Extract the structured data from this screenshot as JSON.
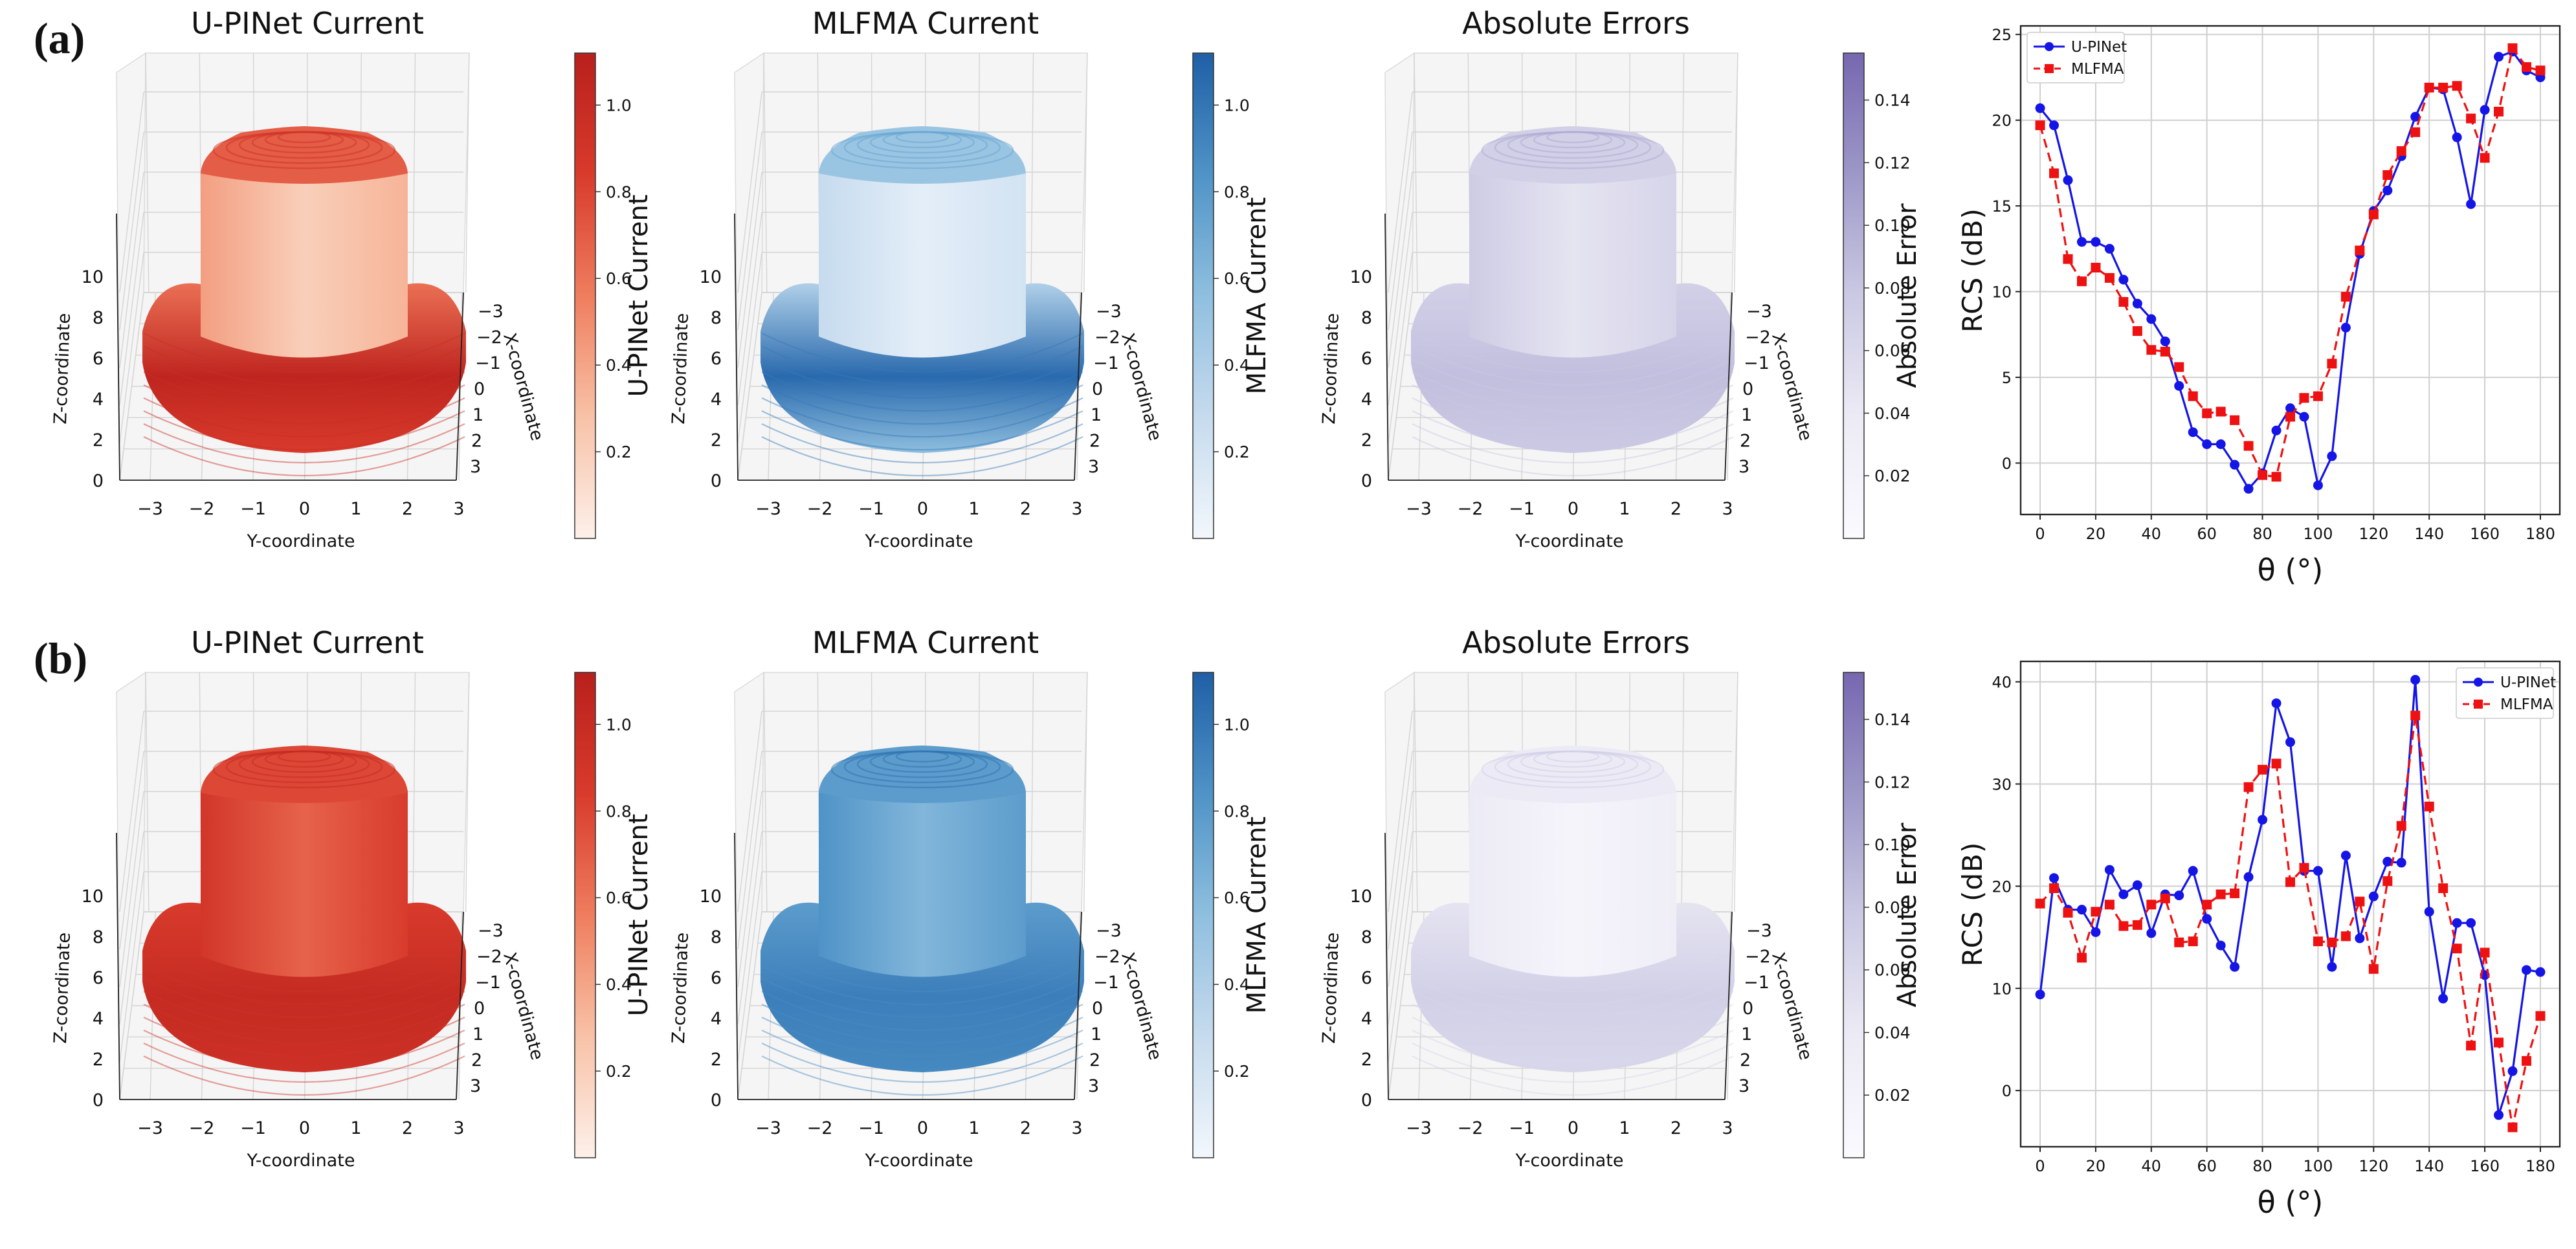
{
  "figure": {
    "rows": [
      {
        "label": "(a)",
        "panels": [
          {
            "title": "U-PINet Current",
            "colorbar_label": "U-PINet Current",
            "colorbar_ticks": [
              "0.2",
              "0.4",
              "0.6",
              "0.8",
              "1.0"
            ],
            "colormap": "Reds",
            "z_label": "Z-coordinate",
            "x_label": "X-coordinate",
            "y_label": "Y-coordinate",
            "z_ticks": [
              "0",
              "2",
              "4",
              "6",
              "8",
              "10"
            ],
            "x_ticks": [
              "−3",
              "−2",
              "−1",
              "0",
              "1",
              "2",
              "3"
            ],
            "y_ticks": [
              "−3",
              "−2",
              "−1",
              "0",
              "1",
              "2",
              "3"
            ]
          },
          {
            "title": "MLFMA Current",
            "colorbar_label": "MLFMA Current",
            "colorbar_ticks": [
              "0.2",
              "0.4",
              "0.6",
              "0.8",
              "1.0"
            ],
            "colormap": "Blues",
            "z_label": "Z-coordinate",
            "x_label": "X-coordinate",
            "y_label": "Y-coordinate",
            "z_ticks": [
              "0",
              "2",
              "4",
              "6",
              "8",
              "10"
            ],
            "x_ticks": [
              "−3",
              "−2",
              "−1",
              "0",
              "1",
              "2",
              "3"
            ],
            "y_ticks": [
              "−3",
              "−2",
              "−1",
              "0",
              "1",
              "2",
              "3"
            ]
          },
          {
            "title": "Absolute Errors",
            "colorbar_label": "Absolute Error",
            "colorbar_ticks": [
              "0.02",
              "0.04",
              "0.06",
              "0.08",
              "0.10",
              "0.12",
              "0.14"
            ],
            "colormap": "Purples",
            "z_label": "Z-coordinate",
            "x_label": "X-coordinate",
            "y_label": "Y-coordinate",
            "z_ticks": [
              "0",
              "2",
              "4",
              "6",
              "8",
              "10"
            ],
            "x_ticks": [
              "−3",
              "−2",
              "−1",
              "0",
              "1",
              "2",
              "3"
            ],
            "y_ticks": [
              "−3",
              "−2",
              "−1",
              "0",
              "1",
              "2",
              "3"
            ]
          }
        ]
      },
      {
        "label": "(b)",
        "panels": [
          {
            "title": "U-PINet Current",
            "colorbar_label": "U-PINet Current",
            "colorbar_ticks": [
              "0.2",
              "0.4",
              "0.6",
              "0.8",
              "1.0"
            ],
            "colormap": "Reds",
            "z_label": "Z-coordinate",
            "x_label": "X-coordinate",
            "y_label": "Y-coordinate",
            "z_ticks": [
              "0",
              "2",
              "4",
              "6",
              "8",
              "10"
            ],
            "x_ticks": [
              "−3",
              "−2",
              "−1",
              "0",
              "1",
              "2",
              "3"
            ],
            "y_ticks": [
              "−3",
              "−2",
              "−1",
              "0",
              "1",
              "2",
              "3"
            ]
          },
          {
            "title": "MLFMA Current",
            "colorbar_label": "MLFMA Current",
            "colorbar_ticks": [
              "0.2",
              "0.4",
              "0.6",
              "0.8",
              "1.0"
            ],
            "colormap": "Blues",
            "z_label": "Z-coordinate",
            "x_label": "X-coordinate",
            "y_label": "Y-coordinate",
            "z_ticks": [
              "0",
              "2",
              "4",
              "6",
              "8",
              "10"
            ],
            "x_ticks": [
              "−3",
              "−2",
              "−1",
              "0",
              "1",
              "2",
              "3"
            ],
            "y_ticks": [
              "−3",
              "−2",
              "−1",
              "0",
              "1",
              "2",
              "3"
            ]
          },
          {
            "title": "Absolute Errors",
            "colorbar_label": "Absolute Error",
            "colorbar_ticks": [
              "0.02",
              "0.04",
              "0.06",
              "0.08",
              "0.10",
              "0.12",
              "0.14"
            ],
            "colormap": "Purples",
            "z_label": "Z-coordinate",
            "x_label": "X-coordinate",
            "y_label": "Y-coordinate",
            "z_ticks": [
              "0",
              "2",
              "4",
              "6",
              "8",
              "10"
            ],
            "x_ticks": [
              "−3",
              "−2",
              "−1",
              "0",
              "1",
              "2",
              "3"
            ],
            "y_ticks": [
              "−3",
              "−2",
              "−1",
              "0",
              "1",
              "2",
              "3"
            ]
          }
        ]
      }
    ],
    "colors": {
      "Reds": [
        "#fdf0ea",
        "#f8c2a7",
        "#ef7d5e",
        "#d83b2c",
        "#b9201c"
      ],
      "Blues": [
        "#f2f7fc",
        "#c6dbee",
        "#8fbfdf",
        "#4f93c7",
        "#1f5fa6"
      ],
      "Purples": [
        "#fbfaff",
        "#ecebf5",
        "#cbc9e3",
        "#9d98c8",
        "#7767b0"
      ],
      "upinet_line": "#1515e6",
      "mlfma_line": "#ee1111"
    }
  },
  "chart_data": [
    {
      "type": "line",
      "panel": "(a)",
      "title": "",
      "xlabel": "θ (°)",
      "ylabel": "RCS (dB)",
      "xlim": [
        -7,
        187
      ],
      "ylim": [
        -3,
        25.5
      ],
      "xticks": [
        0,
        20,
        40,
        60,
        80,
        100,
        120,
        140,
        160,
        180
      ],
      "yticks": [
        0,
        5,
        10,
        15,
        20,
        25
      ],
      "grid": true,
      "legend_position": "top-left",
      "series": [
        {
          "name": "U-PINet",
          "style": "solid",
          "marker": "circle",
          "x": [
            0,
            5,
            10,
            15,
            20,
            25,
            30,
            35,
            40,
            45,
            50,
            55,
            60,
            65,
            70,
            75,
            80,
            85,
            90,
            95,
            100,
            105,
            110,
            115,
            120,
            125,
            130,
            135,
            140,
            145,
            150,
            155,
            160,
            165,
            170,
            175,
            180
          ],
          "y": [
            20.7,
            19.7,
            16.5,
            12.9,
            12.9,
            12.5,
            10.7,
            9.3,
            8.4,
            7.1,
            4.5,
            1.8,
            1.1,
            1.1,
            -0.1,
            -1.5,
            -0.6,
            1.9,
            3.2,
            2.7,
            -1.3,
            0.4,
            7.9,
            12.2,
            14.7,
            15.9,
            17.9,
            20.2,
            21.9,
            21.8,
            19.0,
            15.1,
            20.6,
            23.7,
            24.0,
            22.9,
            22.5
          ]
        },
        {
          "name": "MLFMA",
          "style": "dashed",
          "marker": "square",
          "x": [
            0,
            5,
            10,
            15,
            20,
            25,
            30,
            35,
            40,
            45,
            50,
            55,
            60,
            65,
            70,
            75,
            80,
            85,
            90,
            95,
            100,
            105,
            110,
            115,
            120,
            125,
            130,
            135,
            140,
            145,
            150,
            155,
            160,
            165,
            170,
            175,
            180
          ],
          "y": [
            19.7,
            16.9,
            11.9,
            10.6,
            11.4,
            10.8,
            9.4,
            7.7,
            6.6,
            6.5,
            5.6,
            3.9,
            2.9,
            3.0,
            2.5,
            1.0,
            -0.7,
            -0.8,
            2.7,
            3.8,
            3.9,
            5.8,
            9.7,
            12.4,
            14.5,
            16.8,
            18.2,
            19.3,
            21.9,
            21.9,
            22.0,
            20.1,
            17.8,
            20.5,
            24.2,
            23.1,
            22.9
          ]
        }
      ]
    },
    {
      "type": "line",
      "panel": "(b)",
      "title": "",
      "xlabel": "θ (°)",
      "ylabel": "RCS (dB)",
      "xlim": [
        -7,
        187
      ],
      "ylim": [
        -5.5,
        42
      ],
      "xticks": [
        0,
        20,
        40,
        60,
        80,
        100,
        120,
        140,
        160,
        180
      ],
      "yticks": [
        0,
        10,
        20,
        30,
        40
      ],
      "grid": true,
      "legend_position": "top-right",
      "series": [
        {
          "name": "U-PINet",
          "style": "solid",
          "marker": "circle",
          "x": [
            0,
            5,
            10,
            15,
            20,
            25,
            30,
            35,
            40,
            45,
            50,
            55,
            60,
            65,
            70,
            75,
            80,
            85,
            90,
            95,
            100,
            105,
            110,
            115,
            120,
            125,
            130,
            135,
            140,
            145,
            150,
            155,
            160,
            165,
            170,
            175,
            180
          ],
          "y": [
            9.4,
            20.8,
            17.7,
            17.7,
            15.5,
            21.6,
            19.2,
            20.1,
            15.4,
            19.2,
            19.1,
            21.5,
            16.8,
            14.2,
            12.1,
            20.9,
            26.5,
            37.9,
            34.1,
            21.5,
            21.5,
            12.1,
            23.0,
            14.9,
            19.0,
            22.4,
            22.3,
            40.2,
            17.5,
            9.0,
            16.4,
            16.4,
            11.3,
            -2.4,
            1.9,
            11.8,
            11.6
          ]
        },
        {
          "name": "MLFMA",
          "style": "dashed",
          "marker": "square",
          "x": [
            0,
            5,
            10,
            15,
            20,
            25,
            30,
            35,
            40,
            45,
            50,
            55,
            60,
            65,
            70,
            75,
            80,
            85,
            90,
            95,
            100,
            105,
            110,
            115,
            120,
            125,
            130,
            135,
            140,
            145,
            150,
            155,
            160,
            165,
            170,
            175,
            180
          ],
          "y": [
            18.3,
            19.8,
            17.4,
            13.0,
            17.5,
            18.2,
            16.1,
            16.2,
            18.2,
            18.8,
            14.5,
            14.6,
            18.2,
            19.2,
            19.3,
            29.7,
            31.4,
            32.0,
            20.4,
            21.8,
            14.6,
            14.5,
            15.1,
            18.5,
            11.9,
            20.5,
            25.9,
            36.7,
            27.8,
            19.8,
            13.9,
            4.4,
            13.5,
            4.7,
            -3.6,
            2.9,
            7.3
          ]
        }
      ]
    }
  ]
}
